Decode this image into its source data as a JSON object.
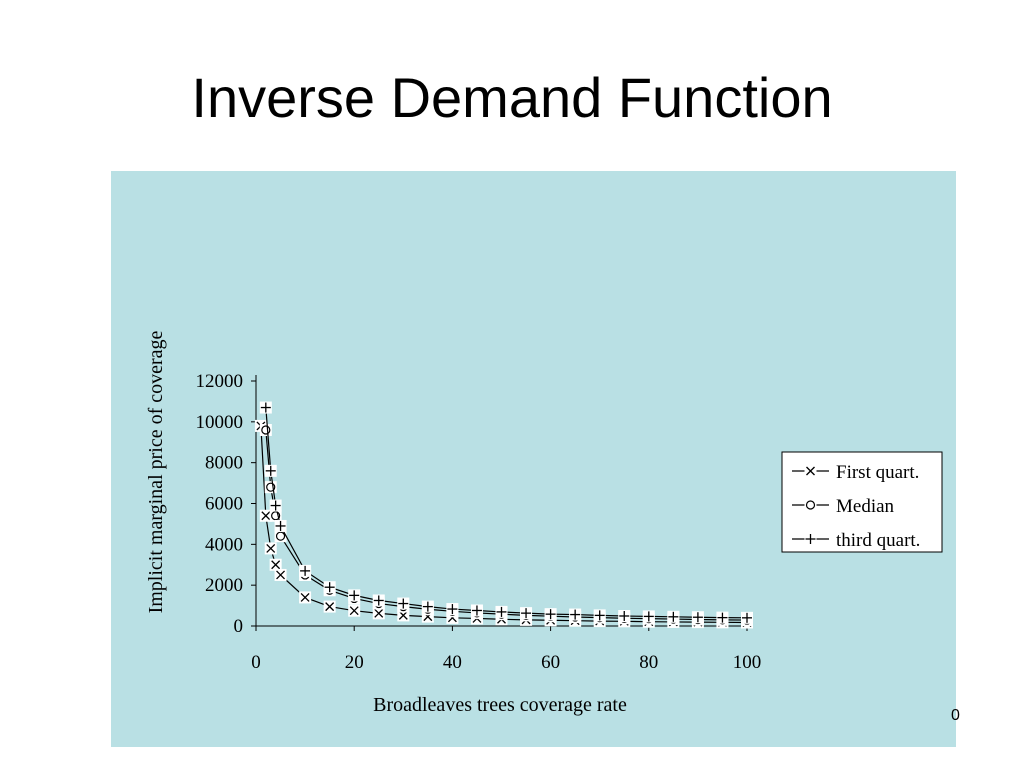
{
  "slide": {
    "title": "Inverse Demand Function",
    "page_number": "0"
  },
  "colors": {
    "panel_background": "#b9e0e4",
    "series_line": "#000000",
    "marker_fill": "#ffffff"
  },
  "chart_data": {
    "type": "line",
    "title": "",
    "xlabel": "Broadleaves trees coverage rate",
    "ylabel": "Implicit marginal price of coverage",
    "xlim": [
      0,
      100
    ],
    "ylim": [
      0,
      12000
    ],
    "xticks": [
      0,
      20,
      40,
      60,
      80,
      100
    ],
    "yticks": [
      0,
      2000,
      4000,
      6000,
      8000,
      10000,
      12000
    ],
    "grid": false,
    "legend_position": "right",
    "series": [
      {
        "name": "First quart.",
        "marker": "x",
        "points": [
          [
            1,
            9800
          ],
          [
            2,
            5400
          ],
          [
            3,
            3800
          ],
          [
            4,
            3000
          ],
          [
            5,
            2500
          ],
          [
            10,
            1400
          ],
          [
            15,
            950
          ],
          [
            20,
            750
          ],
          [
            25,
            620
          ],
          [
            30,
            520
          ],
          [
            35,
            460
          ],
          [
            40,
            400
          ],
          [
            45,
            370
          ],
          [
            50,
            330
          ],
          [
            55,
            300
          ],
          [
            60,
            280
          ],
          [
            65,
            260
          ],
          [
            70,
            240
          ],
          [
            75,
            230
          ],
          [
            80,
            210
          ],
          [
            85,
            200
          ],
          [
            90,
            190
          ],
          [
            95,
            180
          ],
          [
            100,
            170
          ]
        ]
      },
      {
        "name": "Median",
        "marker": "circle",
        "points": [
          [
            2,
            9600
          ],
          [
            3,
            6800
          ],
          [
            4,
            5400
          ],
          [
            5,
            4400
          ],
          [
            10,
            2500
          ],
          [
            15,
            1750
          ],
          [
            20,
            1350
          ],
          [
            25,
            1100
          ],
          [
            30,
            950
          ],
          [
            35,
            820
          ],
          [
            40,
            720
          ],
          [
            45,
            640
          ],
          [
            50,
            580
          ],
          [
            55,
            520
          ],
          [
            60,
            480
          ],
          [
            65,
            440
          ],
          [
            70,
            410
          ],
          [
            75,
            380
          ],
          [
            80,
            360
          ],
          [
            85,
            340
          ],
          [
            90,
            320
          ],
          [
            95,
            300
          ],
          [
            100,
            290
          ]
        ]
      },
      {
        "name": "third quart.",
        "marker": "plus",
        "points": [
          [
            2,
            10700
          ],
          [
            3,
            7600
          ],
          [
            4,
            5900
          ],
          [
            5,
            4900
          ],
          [
            10,
            2700
          ],
          [
            15,
            1900
          ],
          [
            20,
            1500
          ],
          [
            25,
            1250
          ],
          [
            30,
            1100
          ],
          [
            35,
            950
          ],
          [
            40,
            830
          ],
          [
            45,
            760
          ],
          [
            50,
            690
          ],
          [
            55,
            630
          ],
          [
            60,
            580
          ],
          [
            65,
            560
          ],
          [
            70,
            520
          ],
          [
            75,
            490
          ],
          [
            80,
            470
          ],
          [
            85,
            450
          ],
          [
            90,
            430
          ],
          [
            95,
            410
          ],
          [
            100,
            400
          ]
        ]
      }
    ]
  }
}
